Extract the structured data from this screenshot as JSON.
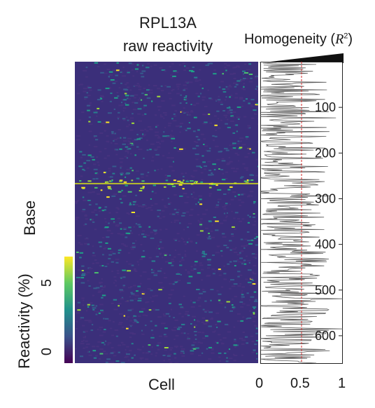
{
  "chart_data": [
    {
      "type": "heatmap",
      "title_line1": "RPL13A",
      "title_line2": "raw reactivity",
      "xlabel": "Cell",
      "ylabel": "Base",
      "colorbar": {
        "label": "Reactivity (%)",
        "ticks": [
          0,
          5
        ],
        "range": [
          0,
          6
        ],
        "colormap": "viridis"
      },
      "background_color": "#3b2f7a",
      "high_reactivity_band_base": 270
    },
    {
      "type": "line",
      "title": "Homogeneity",
      "title_symbol": "R",
      "title_superscript": "2",
      "x_ticks": [
        "0",
        "0.5",
        "1"
      ],
      "xlim": [
        0,
        1
      ],
      "y_ticks": [
        100,
        200,
        300,
        400,
        500,
        600
      ],
      "ylim": [
        0,
        660
      ],
      "threshold": 0.5,
      "threshold_color": "#d42a2a",
      "line_color": "#5a5a5a"
    }
  ]
}
